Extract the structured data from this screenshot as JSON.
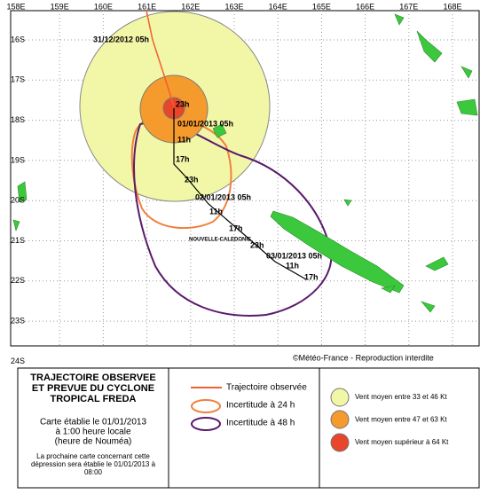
{
  "map": {
    "lon_labels": [
      "158E",
      "159E",
      "160E",
      "161E",
      "162E",
      "163E",
      "164E",
      "165E",
      "166E",
      "167E",
      "168E"
    ],
    "lat_labels": [
      "16S",
      "17S",
      "18S",
      "19S",
      "20S",
      "21S",
      "22S",
      "23S",
      "24S"
    ],
    "track_labels": [
      "31/12/2012 05h",
      "23h",
      "01/01/2013 05h",
      "11h",
      "17h",
      "23h",
      "02/01/2013 05h",
      "11h",
      "17h",
      "23h",
      "03/01/2013 05h",
      "11h",
      "17h"
    ],
    "place_label": "NOUVELLE-CALEDONIE",
    "credit": "©Météo-France - Reproduction interdite"
  },
  "legend": {
    "title": [
      "TRAJECTOIRE OBSERVEE",
      "ET PREVUE DU CYCLONE",
      "TROPICAL FREDA"
    ],
    "issued": [
      "Carte établie le 01/01/2013",
      "à 1:00 heure locale",
      "(heure de Nouméa)"
    ],
    "next": [
      "La prochaine carte concernant cette",
      "dépression sera établie le 01/01/2013 à",
      "08:00"
    ],
    "lines": [
      "Trajectoire observée",
      "Incertitude à 24 h",
      "Incertitude à 48 h"
    ],
    "winds": [
      "Vent moyen entre 33 et 46 Kt",
      "Vent moyen entre 47 et 63 Kt",
      "Vent moyen supérieur à 64 Kt"
    ]
  }
}
